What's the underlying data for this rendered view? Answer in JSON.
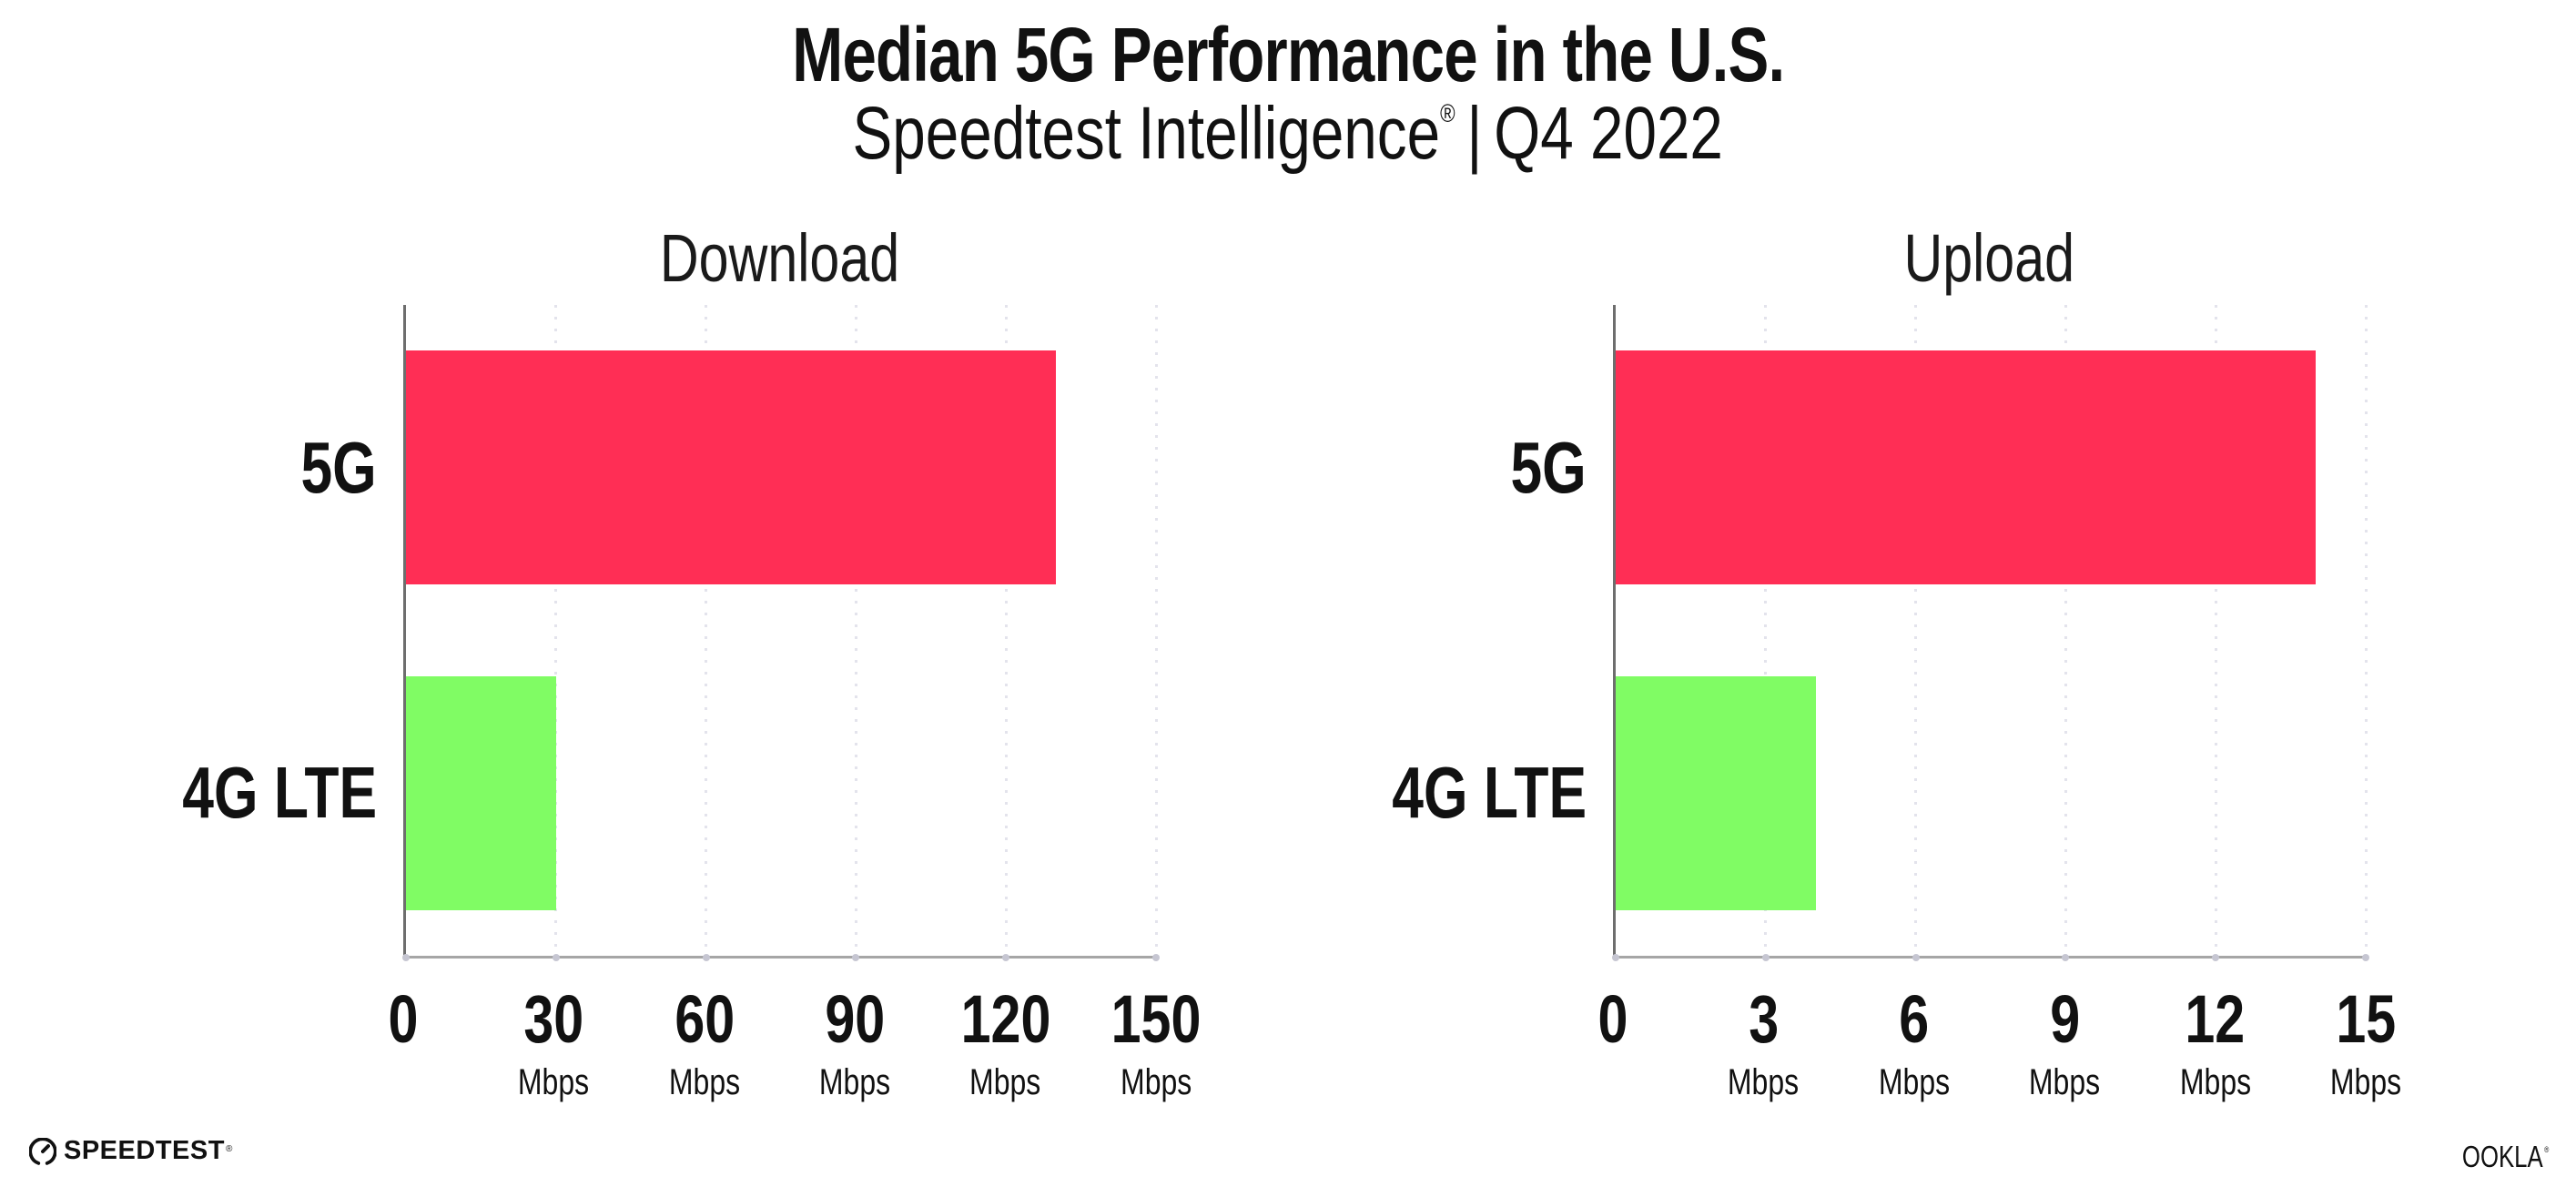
{
  "page": {
    "title": "Median 5G Performance in the U.S.",
    "subtitle_brand": "Speedtest Intelligence",
    "subtitle_reg_mark": "®",
    "subtitle_separator": "|",
    "subtitle_period": "Q4 2022"
  },
  "colors": {
    "bar_5g": "#FF2E55",
    "bar_4g_lte": "#80FC64",
    "gridline": "#E3E3EC",
    "axis_y": "#6E6E6E",
    "axis_x": "#A6A6A6",
    "tick_dot": "#C6C6D2",
    "text": "#111111"
  },
  "chart_data": [
    {
      "type": "bar",
      "orientation": "horizontal",
      "title": "Download",
      "categories": [
        "5G",
        "4G LTE"
      ],
      "values": [
        130,
        30
      ],
      "unit": "Mbps",
      "bar_colors": [
        "#FF2E55",
        "#80FC64"
      ],
      "xlim": [
        0,
        150
      ],
      "x_ticks": [
        0,
        30,
        60,
        90,
        120,
        150
      ],
      "x_tick_unit_label": "Mbps",
      "grid": "vertical-dotted",
      "legend": "none"
    },
    {
      "type": "bar",
      "orientation": "horizontal",
      "title": "Upload",
      "categories": [
        "5G",
        "4G LTE"
      ],
      "values": [
        14,
        4
      ],
      "unit": "Mbps",
      "bar_colors": [
        "#FF2E55",
        "#80FC64"
      ],
      "xlim": [
        0,
        15
      ],
      "x_ticks": [
        0,
        3,
        6,
        9,
        12,
        15
      ],
      "x_tick_unit_label": "Mbps",
      "grid": "vertical-dotted",
      "legend": "none"
    }
  ],
  "footer": {
    "speedtest_logo_text": "SPEEDTEST",
    "speedtest_trademark": "®",
    "ookla_logo_text": "OOKLA",
    "ookla_trademark": "®"
  }
}
